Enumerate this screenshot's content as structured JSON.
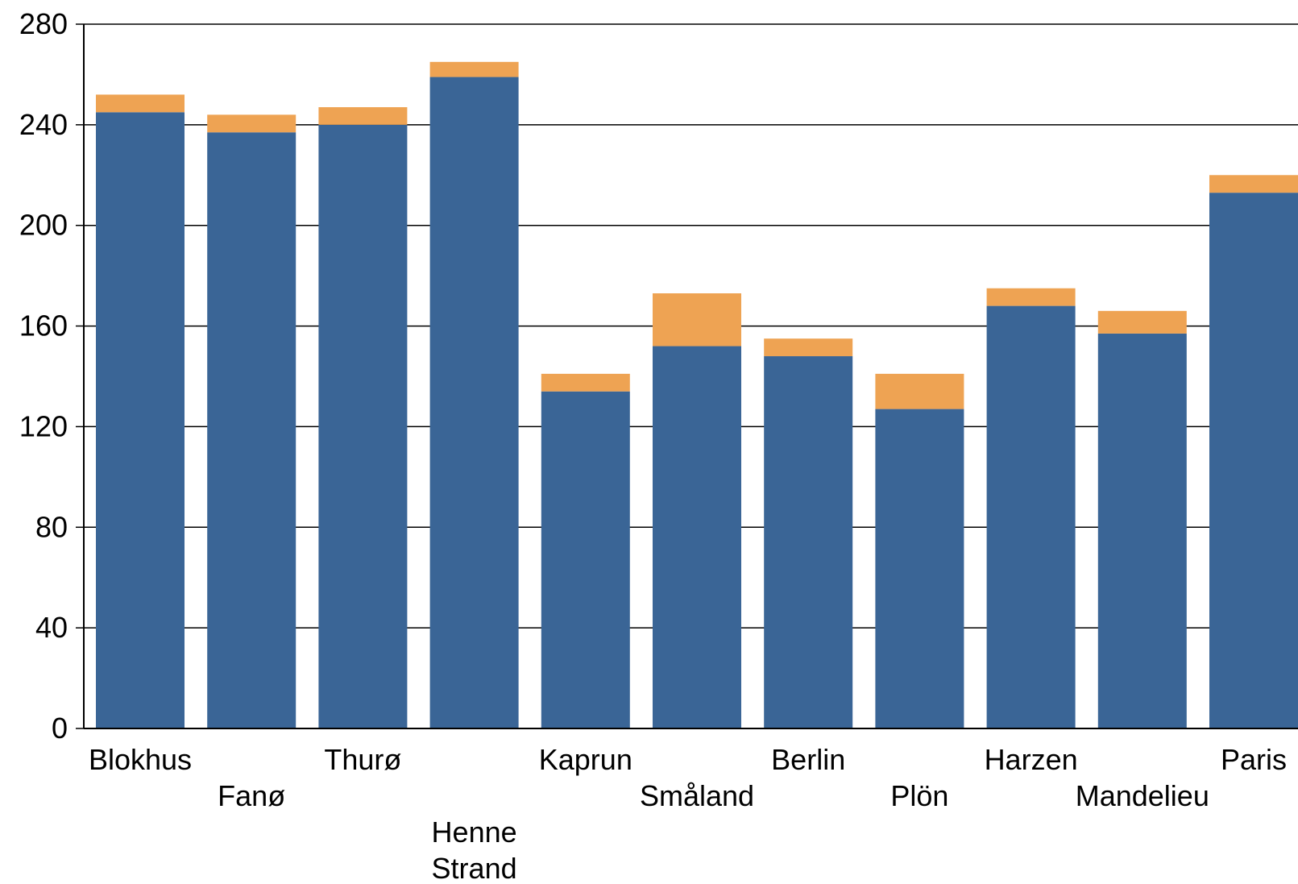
{
  "chart_data": {
    "type": "bar",
    "stacked": true,
    "categories": [
      "Blokhus",
      "Fanø",
      "Thurø",
      "Henne\nStrand",
      "Kaprun",
      "Småland",
      "Berlin",
      "Plön",
      "Harzen",
      "Mandelieu",
      "Paris"
    ],
    "series": [
      {
        "values": [
          245,
          237,
          240,
          259,
          134,
          152,
          148,
          127,
          168,
          157,
          213
        ]
      },
      {
        "values": [
          7,
          7,
          7,
          6,
          7,
          21,
          7,
          14,
          7,
          9,
          7
        ]
      }
    ],
    "colors": [
      "#3a6596",
      "#eea353"
    ],
    "ylim": [
      0,
      280
    ],
    "yticks": [
      0,
      40,
      80,
      120,
      160,
      200,
      240,
      280
    ],
    "grid": true,
    "title": "",
    "xlabel": "",
    "ylabel": ""
  }
}
